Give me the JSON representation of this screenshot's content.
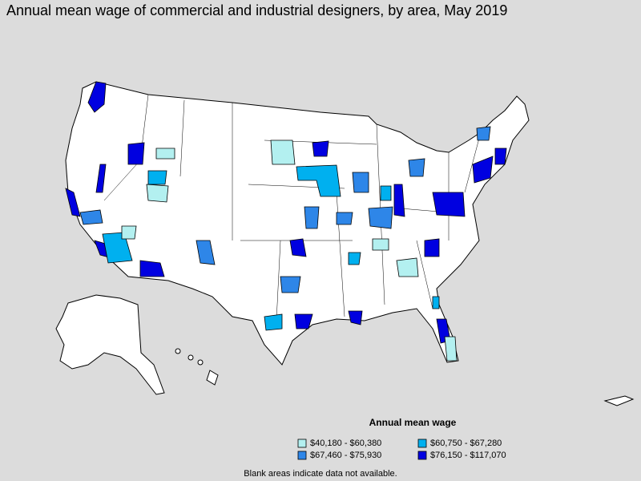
{
  "title": "Annual mean wage of commercial and industrial designers, by area, May 2019",
  "legend": {
    "title": "Annual mean wage",
    "items": [
      {
        "label": "$40,180 - $60,380",
        "color": "#b3f0f0"
      },
      {
        "label": "$60,750 - $67,280",
        "color": "#00b0ef"
      },
      {
        "label": "$67,460 - $75,930",
        "color": "#2e86e8"
      },
      {
        "label": "$76,150 - $117,070",
        "color": "#0000e0"
      }
    ]
  },
  "footnote": "Blank areas indicate data not available."
}
